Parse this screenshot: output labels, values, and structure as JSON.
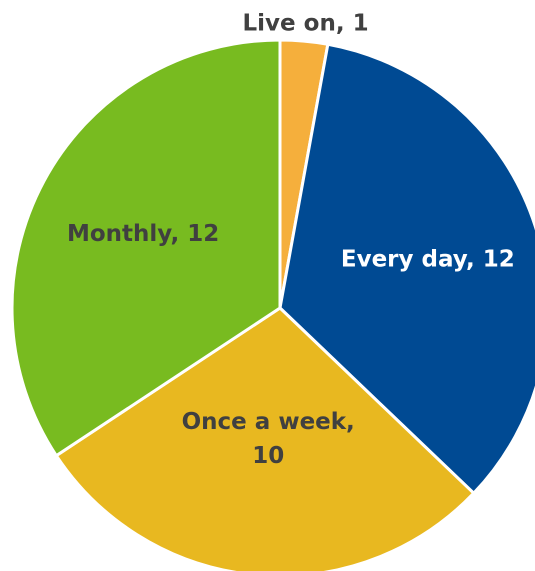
{
  "chart_data": {
    "type": "pie",
    "values": [
      1,
      12,
      10,
      12
    ],
    "value_labels": [
      "Live on, 1",
      "Every day, 12",
      "Once a week, 10",
      "Monthly, 12"
    ],
    "colors": [
      "#f5af3c",
      "#004a93",
      "#e8b820",
      "#78bb20"
    ]
  }
}
